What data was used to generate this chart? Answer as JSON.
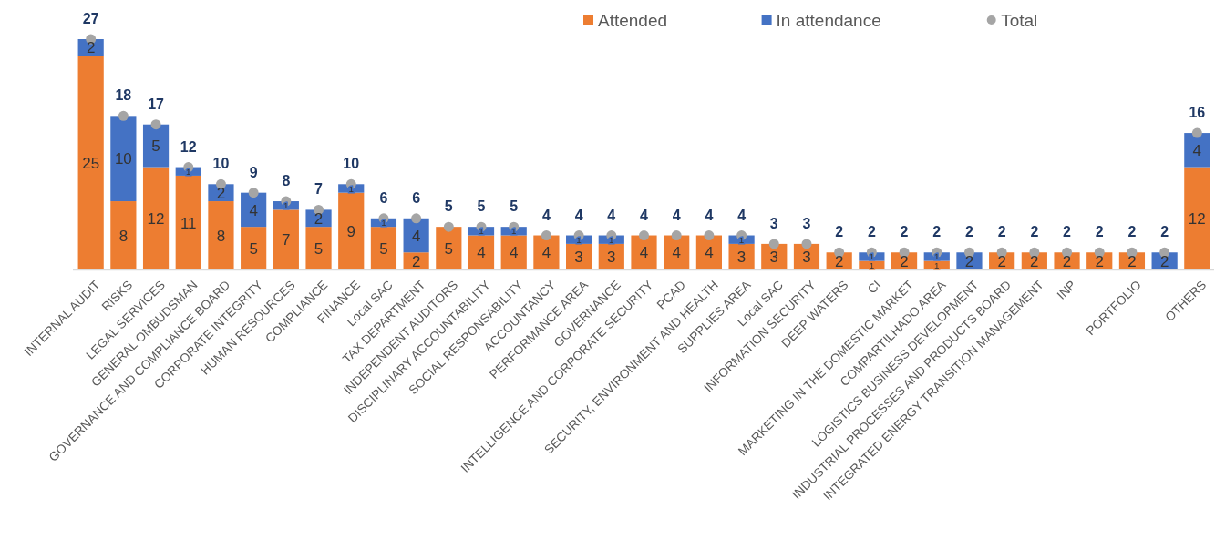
{
  "chart_data": {
    "type": "bar",
    "stacked": true,
    "data_labels": true,
    "legend": "top right",
    "categories": [
      "INTERNAL AUDIT",
      "RISKS",
      "LEGAL SERVICES",
      "GENERAL OMBUDSMAN",
      "GOVERNANCE AND COMPLIANCE BOARD",
      "CORPORATE INTEGRITY",
      "HUMAN RESOURCES",
      "COMPLIANCE",
      "FINANCE",
      "Local SAC",
      "TAX DEPARTMENT",
      "INDEPENDENT AUDITORS",
      "DISCIPLINARY ACCOUNTABILITY",
      "SOCIAL RESPONSABILITY",
      "ACCOUNTANCY",
      "PERFORMANCE AREA",
      "GOVERNANCE",
      "INTELLIGENCE AND CORPORATE SECURITY",
      "PCAD",
      "SECURITY, ENVIRONMENT AND HEALTH",
      "SUPPLIES AREA",
      "Local SAC",
      "INFORMATION SECURITY",
      "DEEP WATERS",
      "CI",
      "MARKETING IN THE DOMESTIC MARKET",
      "COMPARTILHADO AREA",
      "LOGISTICS BUSINESS DEVELOPMENT",
      "INDUSTRIAL PROCESSES AND PRODUCTS BOARD",
      "INTEGRATED ENERGY TRANSITION MANAGEMENT",
      "INP",
      null,
      "PORTFOLIO",
      null,
      "OTHERS"
    ],
    "series": [
      {
        "name": "Attended",
        "color": "#ed7d31",
        "values": [
          25,
          8,
          12,
          11,
          8,
          5,
          7,
          5,
          9,
          5,
          2,
          5,
          4,
          4,
          4,
          3,
          3,
          4,
          4,
          4,
          3,
          3,
          3,
          2,
          1,
          2,
          1,
          null,
          2,
          2,
          2,
          2,
          2,
          null,
          12
        ]
      },
      {
        "name": "In attendance",
        "color": "#4472c4",
        "values": [
          2,
          10,
          5,
          1,
          2,
          4,
          1,
          2,
          1,
          1,
          4,
          null,
          1,
          1,
          null,
          1,
          1,
          null,
          null,
          null,
          1,
          null,
          null,
          null,
          1,
          null,
          1,
          2,
          null,
          null,
          null,
          null,
          null,
          2,
          4
        ]
      },
      {
        "name": "Total",
        "type": "scatter",
        "marker": "circle",
        "color": "#a5a5a5",
        "values": [
          27,
          18,
          17,
          12,
          10,
          9,
          8,
          7,
          10,
          6,
          6,
          5,
          5,
          5,
          4,
          4,
          4,
          4,
          4,
          4,
          4,
          3,
          3,
          2,
          2,
          2,
          2,
          2,
          2,
          2,
          2,
          2,
          2,
          2,
          16
        ]
      }
    ]
  }
}
